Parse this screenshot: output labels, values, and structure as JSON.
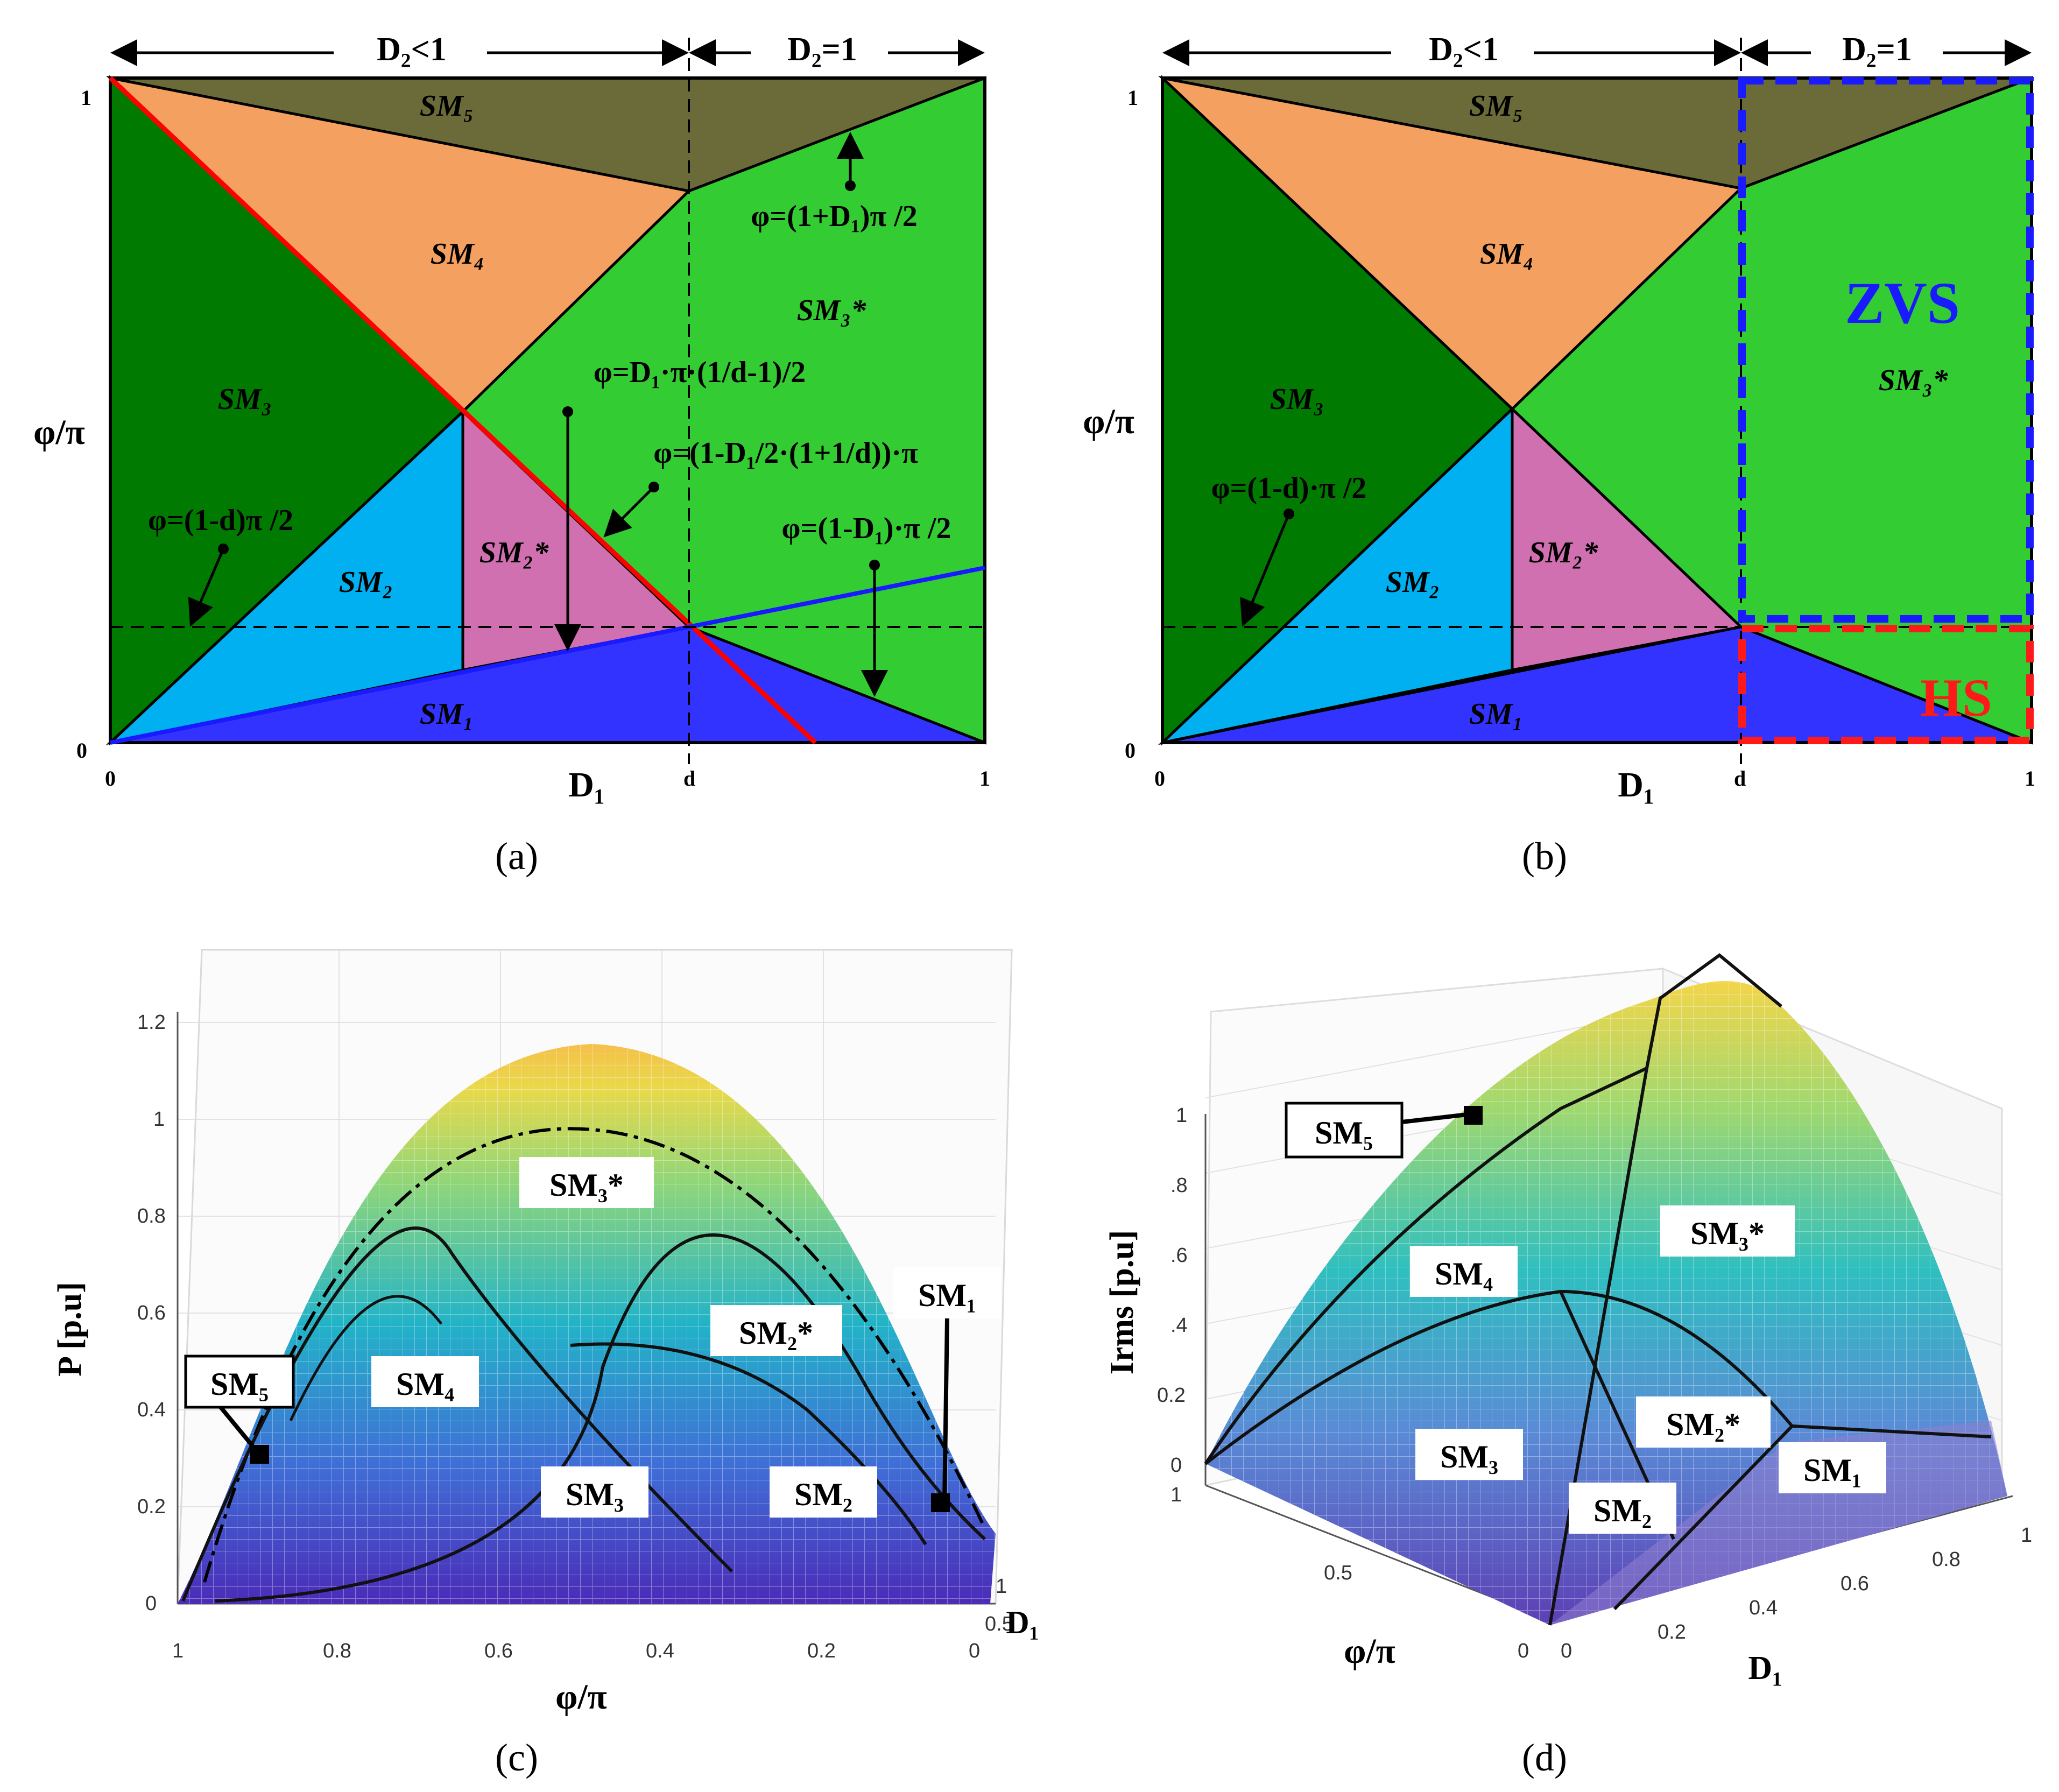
{
  "colors": {
    "sm1": "#3333ff",
    "sm2": "#00b0f0",
    "sm2star": "#d070b0",
    "sm3": "#007a00",
    "sm3star": "#33cc33",
    "sm4": "#f4a060",
    "sm5": "#6b6b3a",
    "red_line": "#ff0000",
    "blue_line": "#1a1aff",
    "zvs": "#1a1aff",
    "hs": "#ff1a1a"
  },
  "panel_a": {
    "caption": "(a)",
    "range_left": "D₂<1",
    "range_right": "D₂=1",
    "y_axis": "φ/π",
    "x_axis": "D₁",
    "ticks": {
      "y_top": "1",
      "y_bottom": "0",
      "x_left": "0",
      "x_mid": "d",
      "x_right": "1"
    },
    "regions": {
      "sm1": "SM₁",
      "sm2": "SM₂",
      "sm2star": "SM₂*",
      "sm3": "SM₃",
      "sm3star": "SM₃*",
      "sm4": "SM₄",
      "sm5": "SM₅"
    },
    "equations": {
      "eq_top": "φ=(1+D₁)π /2",
      "eq_mid": "φ=D₁·π·(1/d-1)/2",
      "eq_diag": "φ=(1-D₁/2·(1+1/d))·π",
      "eq_left": "φ=(1-d)π /2",
      "eq_right": "φ=(1-D₁)·π /2"
    }
  },
  "panel_b": {
    "caption": "(b)",
    "range_left": "D₂<1",
    "range_right": "D₂=1",
    "y_axis": "φ/π",
    "x_axis": "D₁",
    "ticks": {
      "y_top": "1",
      "y_bottom": "0",
      "x_left": "0",
      "x_mid": "d",
      "x_right": "1"
    },
    "regions": {
      "sm1": "SM₁",
      "sm2": "SM₂",
      "sm2star": "SM₂*",
      "sm3": "SM₃",
      "sm3star": "SM₃*",
      "sm4": "SM₄",
      "sm5": "SM₅"
    },
    "equation_left": "φ=(1-d)·π /2",
    "zvs_label": "ZVS",
    "hs_label": "HS"
  },
  "panel_c": {
    "caption": "(c)",
    "z_axis": "P [p.u]",
    "x_axis": "φ/π",
    "depth_axis": "D₁",
    "z_ticks": [
      "0",
      "0.2",
      "0.4",
      "0.6",
      "0.8",
      "1",
      "1.2"
    ],
    "x_ticks": [
      "1",
      "0.8",
      "0.6",
      "0.4",
      "0.2",
      "0"
    ],
    "depth_ticks": [
      "0.5",
      "1"
    ],
    "labels": {
      "sm5": "SM₅",
      "sm4": "SM₄",
      "sm3": "SM₃",
      "sm3star": "SM₃*",
      "sm2star": "SM₂*",
      "sm2": "SM₂",
      "sm1": "SM₁"
    }
  },
  "panel_d": {
    "caption": "(d)",
    "z_axis": "Irms [p.u]",
    "x_axis": "φ/π",
    "depth_axis": "D₁",
    "z_ticks": [
      "0",
      "0.2",
      ".4",
      ".6",
      ".8",
      "1"
    ],
    "x_ticks": [
      "1",
      "0.5",
      "0"
    ],
    "depth_ticks": [
      "0",
      "0.2",
      "0.4",
      "0.6",
      "0.8",
      "1"
    ],
    "labels": {
      "sm5": "SM₅",
      "sm4": "SM₄",
      "sm3": "SM₃",
      "sm3star": "SM₃*",
      "sm2star": "SM₂*",
      "sm2": "SM₂",
      "sm1": "SM₁"
    }
  }
}
